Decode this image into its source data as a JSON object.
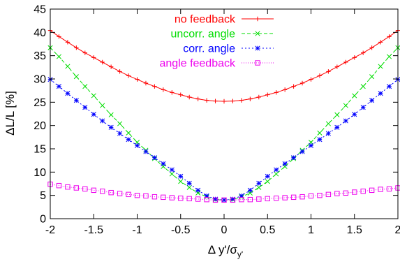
{
  "chart_data": {
    "type": "line",
    "xlabel": "Δ y'/σ",
    "xlabel_sub": "y'",
    "ylabel": "ΔL/L [%]",
    "xlim": [
      -2,
      2
    ],
    "ylim": [
      0,
      45
    ],
    "x_ticks": [
      "-2",
      "-1.5",
      "-1",
      "-0.5",
      "0",
      "0.5",
      "1",
      "1.5",
      "2"
    ],
    "y_ticks": [
      "0",
      "5",
      "10",
      "15",
      "20",
      "25",
      "30",
      "35",
      "40",
      "45"
    ],
    "grid": false,
    "legend_position": "top-right",
    "x": [
      -2.0,
      -1.9,
      -1.8,
      -1.7,
      -1.6,
      -1.5,
      -1.4,
      -1.3,
      -1.2,
      -1.1,
      -1.0,
      -0.9,
      -0.8,
      -0.7,
      -0.6,
      -0.5,
      -0.4,
      -0.3,
      -0.2,
      -0.1,
      0.0,
      0.1,
      0.2,
      0.3,
      0.4,
      0.5,
      0.6,
      0.7,
      0.8,
      0.9,
      1.0,
      1.1,
      1.2,
      1.3,
      1.4,
      1.5,
      1.6,
      1.7,
      1.8,
      1.9,
      2.0
    ],
    "series": [
      {
        "name": "no feedback",
        "color": "#ff0000",
        "marker": "plus",
        "dash": "",
        "values": [
          40.4,
          39.1,
          37.9,
          36.7,
          35.6,
          34.6,
          33.6,
          32.6,
          31.6,
          30.7,
          29.9,
          29.1,
          28.4,
          27.7,
          27.1,
          26.6,
          26.1,
          25.7,
          25.4,
          25.25,
          25.2,
          25.25,
          25.4,
          25.7,
          26.1,
          26.6,
          27.1,
          27.7,
          28.4,
          29.1,
          29.9,
          30.7,
          31.6,
          32.6,
          33.6,
          34.6,
          35.6,
          36.7,
          37.9,
          39.1,
          40.4
        ]
      },
      {
        "name": "uncorr. angle",
        "color": "#00dd00",
        "marker": "cross",
        "dash": "5,3",
        "values": [
          36.7,
          34.8,
          32.7,
          30.5,
          28.4,
          26.4,
          24.3,
          22.3,
          20.4,
          18.4,
          16.4,
          14.7,
          12.9,
          11.2,
          9.6,
          8.0,
          6.7,
          5.5,
          4.7,
          4.1,
          4.0,
          4.1,
          4.7,
          5.5,
          6.7,
          8.0,
          9.6,
          11.2,
          12.9,
          14.7,
          16.4,
          18.4,
          20.4,
          22.3,
          24.3,
          26.4,
          28.4,
          30.5,
          32.7,
          34.8,
          36.7
        ]
      },
      {
        "name": "corr. angle",
        "color": "#0000ff",
        "marker": "star",
        "dash": "2,3",
        "values": [
          29.9,
          28.4,
          26.9,
          25.4,
          23.9,
          22.4,
          21.0,
          19.6,
          18.3,
          17.0,
          15.7,
          14.4,
          13.1,
          11.8,
          10.5,
          9.1,
          7.6,
          6.1,
          4.9,
          4.2,
          4.0,
          4.2,
          4.9,
          6.1,
          7.6,
          9.1,
          10.5,
          11.8,
          13.1,
          14.4,
          15.7,
          17.0,
          18.3,
          19.6,
          21.0,
          22.4,
          23.9,
          25.4,
          26.9,
          28.4,
          29.9
        ]
      },
      {
        "name": "angle feedback",
        "color": "#ee00ee",
        "marker": "square",
        "dash": "1,2",
        "values": [
          7.4,
          7.1,
          6.8,
          6.6,
          6.4,
          6.1,
          5.9,
          5.6,
          5.4,
          5.2,
          5.0,
          4.9,
          4.7,
          4.6,
          4.5,
          4.4,
          4.3,
          4.2,
          4.1,
          4.0,
          4.0,
          4.0,
          4.1,
          4.1,
          4.2,
          4.3,
          4.4,
          4.5,
          4.6,
          4.7,
          4.9,
          5.0,
          5.2,
          5.4,
          5.5,
          5.7,
          5.9,
          6.1,
          6.3,
          6.4,
          6.6
        ]
      }
    ]
  }
}
